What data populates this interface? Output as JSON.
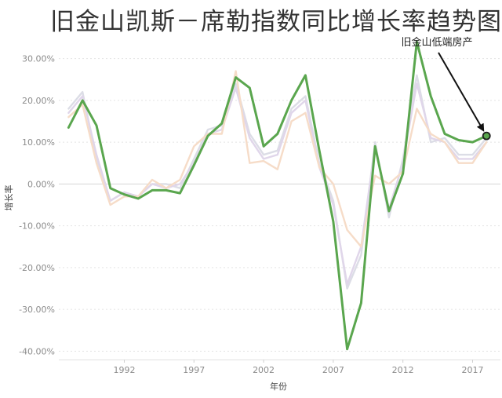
{
  "chart_data": {
    "type": "line",
    "title": "旧金山凯斯－席勒指数同比增长率趋势图",
    "xlabel": "年份",
    "ylabel": "增长率",
    "ylim": [
      -0.42,
      0.35
    ],
    "xlim": [
      1987.3,
      2019.0
    ],
    "y_ticks": [
      0.3,
      0.2,
      0.1,
      0.0,
      -0.1,
      -0.2,
      -0.3,
      -0.4
    ],
    "y_tick_labels": [
      "30.00%",
      "20.00%",
      "10.00%",
      "0.00%",
      "-10.00%",
      "-20.00%",
      "-30.00%",
      "-40.00%"
    ],
    "x_ticks": [
      1992,
      1997,
      2002,
      2007,
      2012,
      2017
    ],
    "x_tick_labels": [
      "1992",
      "1997",
      "2002",
      "2007",
      "2012",
      "2017"
    ],
    "grid": "horizontal dashed",
    "x": [
      1988,
      1989,
      1990,
      1991,
      1992,
      1993,
      1994,
      1995,
      1996,
      1997,
      1998,
      1999,
      2000,
      2001,
      2002,
      2003,
      2004,
      2005,
      2006,
      2007,
      2008,
      2009,
      2010,
      2011,
      2012,
      2013,
      2014,
      2015,
      2016,
      2017,
      2018
    ],
    "series": [
      {
        "color": "#dcdde6",
        "highlight": false,
        "values": [
          0.18,
          0.22,
          0.06,
          -0.04,
          -0.02,
          -0.03,
          0.0,
          0.0,
          -0.01,
          0.06,
          0.13,
          0.14,
          0.24,
          0.12,
          0.07,
          0.08,
          0.18,
          0.21,
          0.05,
          -0.04,
          -0.25,
          -0.17,
          0.1,
          -0.08,
          0.06,
          0.26,
          0.1,
          0.11,
          0.07,
          0.07,
          0.11
        ]
      },
      {
        "color": "#e0d6ea",
        "highlight": false,
        "values": [
          0.17,
          0.21,
          0.07,
          -0.04,
          -0.02,
          -0.03,
          0.0,
          -0.01,
          0.0,
          0.05,
          0.12,
          0.13,
          0.23,
          0.11,
          0.06,
          0.07,
          0.17,
          0.2,
          0.04,
          -0.05,
          -0.24,
          -0.15,
          0.09,
          -0.06,
          0.05,
          0.24,
          0.11,
          0.1,
          0.06,
          0.06,
          0.1
        ]
      },
      {
        "color": "#f6dcc8",
        "highlight": false,
        "values": [
          0.16,
          0.19,
          0.05,
          -0.05,
          -0.03,
          -0.03,
          0.01,
          -0.01,
          0.01,
          0.09,
          0.12,
          0.12,
          0.27,
          0.05,
          0.055,
          0.035,
          0.15,
          0.17,
          0.04,
          0.0,
          -0.11,
          -0.15,
          0.02,
          0.0,
          0.03,
          0.18,
          0.12,
          0.1,
          0.05,
          0.05,
          0.1
        ]
      },
      {
        "color": "#5aa64e",
        "highlight": true,
        "label": "旧金山低端房产",
        "values": [
          0.135,
          0.2,
          0.14,
          -0.01,
          -0.025,
          -0.035,
          -0.015,
          -0.015,
          -0.022,
          0.045,
          0.115,
          0.145,
          0.255,
          0.23,
          0.09,
          0.12,
          0.2,
          0.26,
          0.08,
          -0.09,
          -0.395,
          -0.285,
          0.09,
          -0.065,
          0.025,
          0.34,
          0.21,
          0.12,
          0.105,
          0.1,
          0.115
        ]
      }
    ],
    "annotation": {
      "text": "旧金山低端房产",
      "target_x": 2018,
      "target_y": 0.115
    }
  }
}
